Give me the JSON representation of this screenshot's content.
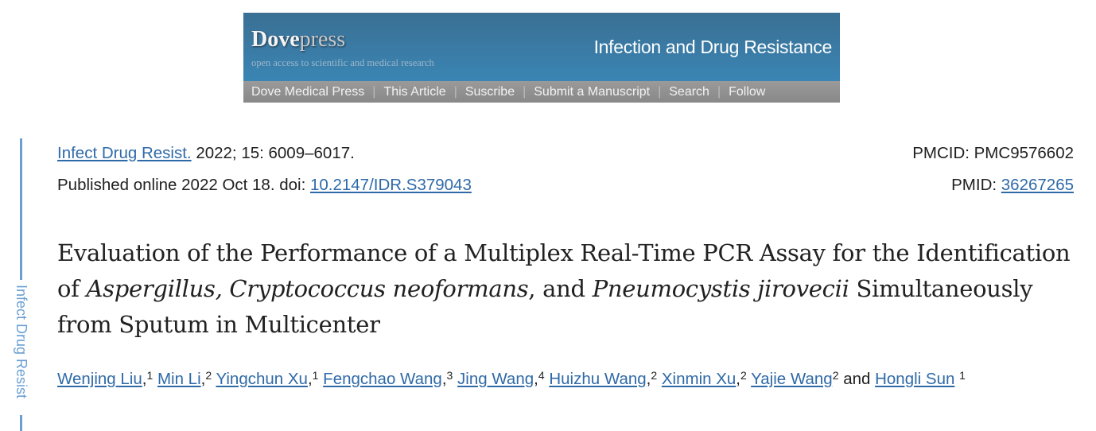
{
  "banner": {
    "logo": {
      "dove": "Dove",
      "press": "press"
    },
    "tagline": "open access to scientific and medical research",
    "journal": "Infection and Drug Resistance",
    "nav": [
      "Dove Medical Press",
      "This Article",
      "Suscribe",
      "Submit a Manuscript",
      "Search",
      "Follow"
    ]
  },
  "sidebar": {
    "label": "Infect Drug Resist"
  },
  "citation": {
    "journal_link": "Infect Drug Resist.",
    "details": " 2022; 15: 6009–6017.",
    "published": "Published online 2022 Oct 18. doi: ",
    "doi": "10.2147/IDR.S379043",
    "pmcid": "PMCID: PMC9576602",
    "pmid_label": "PMID: ",
    "pmid": "36267265"
  },
  "title": {
    "part1": "Evaluation of the Performance of a Multiplex Real-Time PCR Assay for the Identification of ",
    "italic1": "Aspergillus, Cryptococcus neoformans",
    "part2": ", and ",
    "italic2": "Pneumocystis jirovecii",
    "part3": " Simultaneously from Sputum in Multicenter"
  },
  "authors": [
    {
      "name": "Wenjing Liu",
      "aff": "1",
      "sep": ", "
    },
    {
      "name": "Min Li",
      "aff": "2",
      "sep": ", "
    },
    {
      "name": "Yingchun Xu",
      "aff": "1",
      "sep": ", "
    },
    {
      "name": "Fengchao Wang",
      "aff": "3",
      "sep": ", "
    },
    {
      "name": "Jing Wang",
      "aff": "4",
      "sep": ", "
    },
    {
      "name": "Huizhu Wang",
      "aff": "2",
      "sep": ", "
    },
    {
      "name": "Xinmin Xu",
      "aff": "2",
      "sep": ", "
    },
    {
      "name": "Yajie Wang",
      "aff": "2",
      "sep": " and "
    },
    {
      "name": "Hongli Sun",
      "aff": "1",
      "sep": ""
    }
  ]
}
